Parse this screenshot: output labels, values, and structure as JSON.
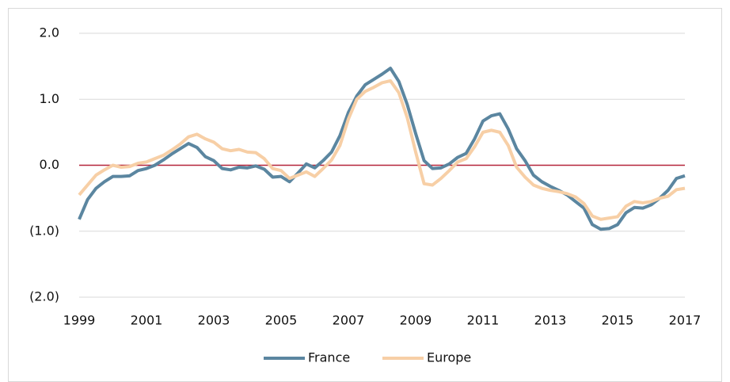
{
  "chart_data": {
    "type": "line",
    "x": [
      1999,
      1999.25,
      1999.5,
      1999.75,
      2000,
      2000.25,
      2000.5,
      2000.75,
      2001,
      2001.25,
      2001.5,
      2001.75,
      2002,
      2002.25,
      2002.5,
      2002.75,
      2003,
      2003.25,
      2003.5,
      2003.75,
      2004,
      2004.25,
      2004.5,
      2004.75,
      2005,
      2005.25,
      2005.5,
      2005.75,
      2006,
      2006.25,
      2006.5,
      2006.75,
      2007,
      2007.25,
      2007.5,
      2007.75,
      2008,
      2008.25,
      2008.5,
      2008.75,
      2009,
      2009.25,
      2009.5,
      2009.75,
      2010,
      2010.25,
      2010.5,
      2010.75,
      2011,
      2011.25,
      2011.5,
      2011.75,
      2012,
      2012.25,
      2012.5,
      2012.75,
      2013,
      2013.25,
      2013.5,
      2013.75,
      2014,
      2014.25,
      2014.5,
      2014.75,
      2015,
      2015.25,
      2015.5,
      2015.75,
      2016,
      2016.25,
      2016.5,
      2016.75,
      2017
    ],
    "series": [
      {
        "name": "France",
        "color": "#5b86a0",
        "values": [
          -0.82,
          -0.52,
          -0.35,
          -0.25,
          -0.17,
          -0.17,
          -0.16,
          -0.08,
          -0.05,
          0.0,
          0.08,
          0.17,
          0.25,
          0.33,
          0.27,
          0.13,
          0.07,
          -0.05,
          -0.07,
          -0.03,
          -0.04,
          -0.01,
          -0.06,
          -0.18,
          -0.17,
          -0.25,
          -0.12,
          0.02,
          -0.04,
          0.07,
          0.2,
          0.45,
          0.8,
          1.05,
          1.22,
          1.3,
          1.38,
          1.47,
          1.27,
          0.92,
          0.48,
          0.07,
          -0.05,
          -0.04,
          0.02,
          0.12,
          0.18,
          0.4,
          0.67,
          0.75,
          0.78,
          0.55,
          0.25,
          0.07,
          -0.15,
          -0.25,
          -0.32,
          -0.38,
          -0.45,
          -0.55,
          -0.65,
          -0.9,
          -0.97,
          -0.96,
          -0.9,
          -0.72,
          -0.64,
          -0.65,
          -0.6,
          -0.5,
          -0.38,
          -0.2,
          -0.16
        ]
      },
      {
        "name": "Europe",
        "color": "#f7cfa6",
        "values": [
          -0.45,
          -0.3,
          -0.15,
          -0.07,
          0.0,
          -0.03,
          -0.02,
          0.03,
          0.05,
          0.1,
          0.15,
          0.23,
          0.32,
          0.43,
          0.47,
          0.4,
          0.35,
          0.25,
          0.22,
          0.24,
          0.2,
          0.19,
          0.1,
          -0.05,
          -0.08,
          -0.2,
          -0.15,
          -0.1,
          -0.17,
          -0.05,
          0.08,
          0.3,
          0.7,
          1.0,
          1.12,
          1.18,
          1.25,
          1.28,
          1.1,
          0.72,
          0.2,
          -0.28,
          -0.3,
          -0.2,
          -0.08,
          0.05,
          0.1,
          0.28,
          0.5,
          0.53,
          0.5,
          0.3,
          -0.03,
          -0.18,
          -0.3,
          -0.35,
          -0.38,
          -0.4,
          -0.43,
          -0.48,
          -0.58,
          -0.77,
          -0.82,
          -0.8,
          -0.78,
          -0.62,
          -0.55,
          -0.57,
          -0.55,
          -0.5,
          -0.47,
          -0.37,
          -0.35
        ]
      }
    ],
    "xlim": [
      1999,
      2017
    ],
    "xticks": [
      1999,
      2001,
      2003,
      2005,
      2007,
      2009,
      2011,
      2013,
      2015,
      2017
    ],
    "ylim": [
      -2,
      2
    ],
    "yticks": [
      {
        "value": 2,
        "label": "2.0"
      },
      {
        "value": 1,
        "label": "1.0"
      },
      {
        "value": 0,
        "label": "0.0"
      },
      {
        "value": -1,
        "label": "(1.0)"
      },
      {
        "value": -2,
        "label": "(2.0)"
      }
    ],
    "grid": true,
    "legend": "bottom",
    "reference_line": {
      "value": 0,
      "color": "#b5243a"
    }
  }
}
